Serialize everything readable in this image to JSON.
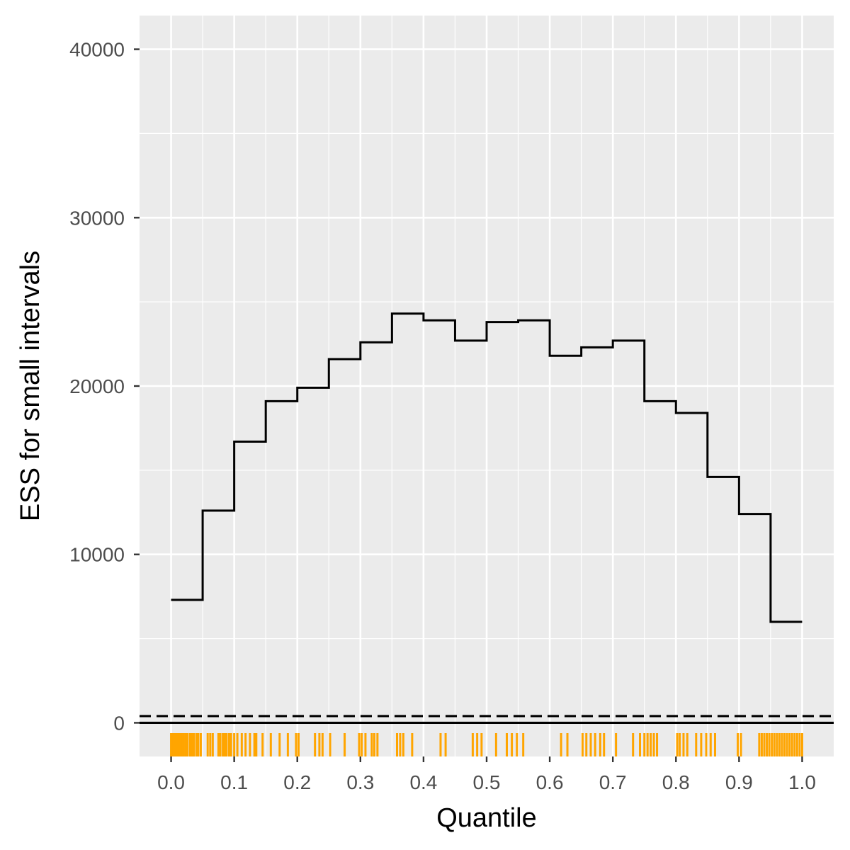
{
  "chart_data": {
    "type": "step",
    "xlabel": "Quantile",
    "ylabel": "ESS for small intervals",
    "xlim": [
      -0.05,
      1.05
    ],
    "ylim": [
      -2000,
      42000
    ],
    "x_ticks": [
      "0.0",
      "0.1",
      "0.2",
      "0.3",
      "0.4",
      "0.5",
      "0.6",
      "0.7",
      "0.8",
      "0.9",
      "1.0"
    ],
    "y_ticks": [
      "0",
      "10000",
      "20000",
      "30000",
      "40000"
    ],
    "grid": true,
    "series": [
      {
        "bins": [
          0.0,
          0.05,
          0.1,
          0.15,
          0.2,
          0.25,
          0.3,
          0.35,
          0.4,
          0.45,
          0.5,
          0.55,
          0.6,
          0.65,
          0.7,
          0.75,
          0.8,
          0.85,
          0.9,
          0.95,
          1.0
        ],
        "values": [
          7300,
          12600,
          16700,
          19100,
          19900,
          21600,
          22600,
          24300,
          23900,
          22700,
          23800,
          23900,
          21800,
          22300,
          22700,
          19100,
          18400,
          14600,
          12400,
          6000
        ],
        "color": "#000000"
      }
    ],
    "reference_lines": [
      {
        "y": 400,
        "style": "dashed",
        "color": "#000000"
      },
      {
        "y": 0,
        "style": "solid",
        "color": "#000000"
      }
    ],
    "rug": {
      "color": "#ffa500",
      "positions": [
        0.0,
        0.002,
        0.004,
        0.006,
        0.008,
        0.01,
        0.012,
        0.014,
        0.016,
        0.018,
        0.02,
        0.023,
        0.026,
        0.03,
        0.033,
        0.036,
        0.04,
        0.043,
        0.047,
        0.058,
        0.062,
        0.066,
        0.075,
        0.078,
        0.082,
        0.085,
        0.088,
        0.092,
        0.095,
        0.1,
        0.105,
        0.112,
        0.118,
        0.125,
        0.132,
        0.135,
        0.145,
        0.158,
        0.172,
        0.185,
        0.198,
        0.202,
        0.228,
        0.235,
        0.24,
        0.252,
        0.275,
        0.298,
        0.302,
        0.308,
        0.318,
        0.322,
        0.327,
        0.358,
        0.363,
        0.368,
        0.382,
        0.427,
        0.435,
        0.478,
        0.485,
        0.492,
        0.515,
        0.532,
        0.54,
        0.548,
        0.558,
        0.618,
        0.628,
        0.652,
        0.658,
        0.665,
        0.672,
        0.68,
        0.686,
        0.705,
        0.732,
        0.743,
        0.75,
        0.755,
        0.76,
        0.765,
        0.77,
        0.802,
        0.806,
        0.812,
        0.818,
        0.832,
        0.84,
        0.848,
        0.855,
        0.862,
        0.898,
        0.903,
        0.932,
        0.936,
        0.94,
        0.944,
        0.948,
        0.952,
        0.956,
        0.96,
        0.964,
        0.968,
        0.972,
        0.976,
        0.98,
        0.984,
        0.988,
        0.992,
        0.996,
        1.0
      ]
    }
  }
}
